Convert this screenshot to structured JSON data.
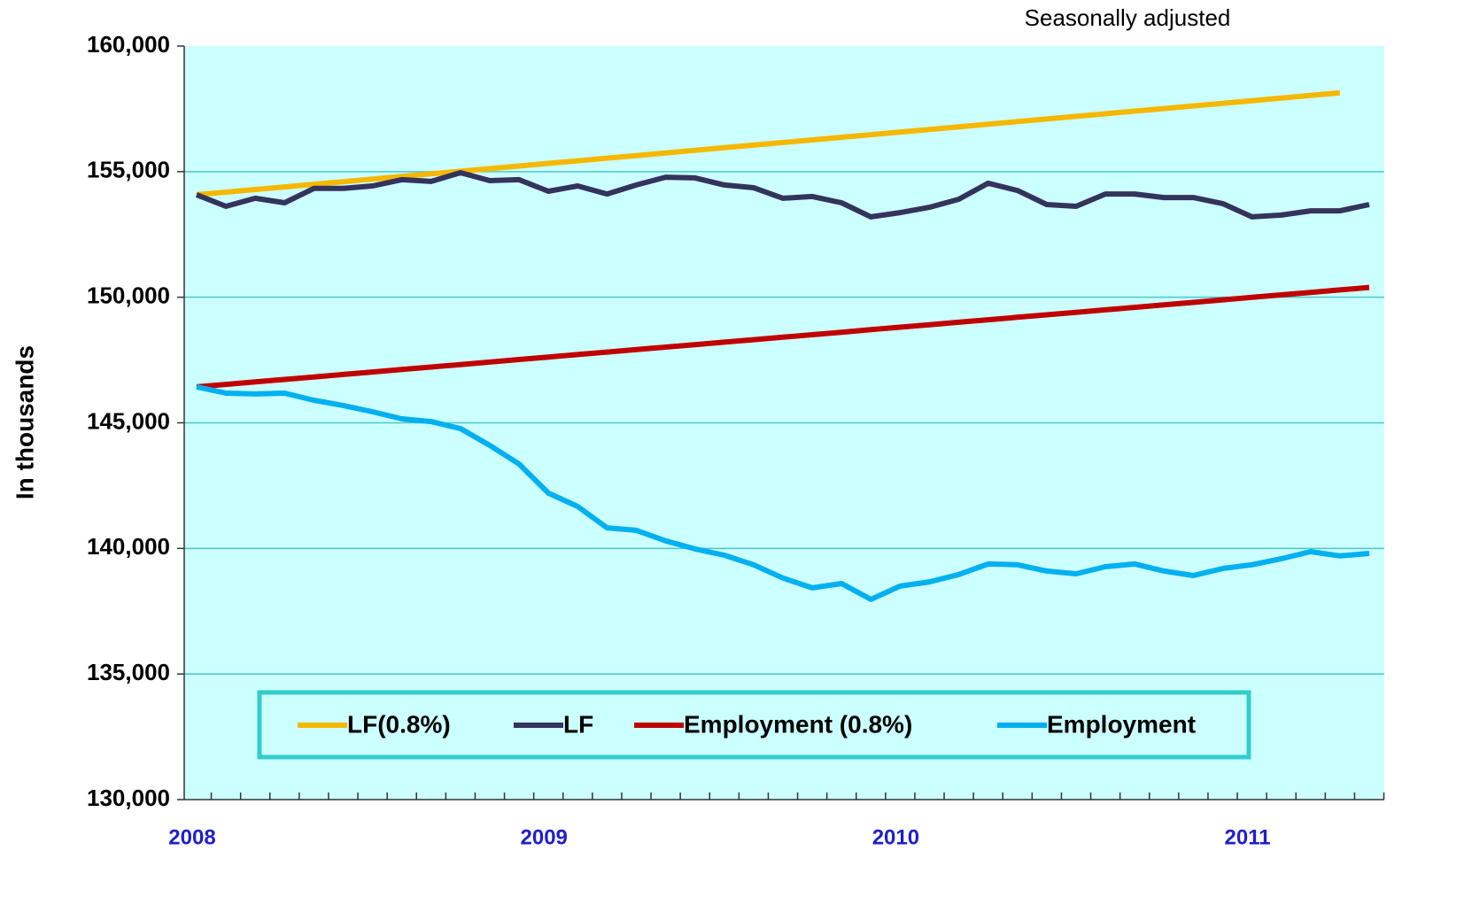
{
  "chart_data": {
    "type": "line",
    "annotation": "Seasonally adjusted",
    "y_label": "In thousands",
    "categories": [
      "2008",
      null,
      null,
      null,
      null,
      null,
      null,
      null,
      null,
      null,
      null,
      null,
      "2009",
      null,
      null,
      null,
      null,
      null,
      null,
      null,
      null,
      null,
      null,
      null,
      "2010",
      null,
      null,
      null,
      null,
      null,
      null,
      null,
      null,
      null,
      null,
      null,
      "2011",
      null,
      null,
      null,
      null
    ],
    "ylim": [
      130000,
      160000
    ],
    "yticks": [
      {
        "value": 130000,
        "label": "130,000"
      },
      {
        "value": 135000,
        "label": "135,000"
      },
      {
        "value": 140000,
        "label": "140,000"
      },
      {
        "value": 145000,
        "label": "145,000"
      },
      {
        "value": 150000,
        "label": "150,000"
      },
      {
        "value": 155000,
        "label": "155,000"
      },
      {
        "value": 160000,
        "label": "160,000"
      }
    ],
    "grid": true,
    "legend": "bottom",
    "series": [
      {
        "name": "LF(0.8%)",
        "color": "#f5b800",
        "values": [
          154080,
          154184,
          154288,
          154392,
          154496,
          154600,
          154704,
          154808,
          154912,
          155016,
          155120,
          155224,
          155328,
          155432,
          155536,
          155640,
          155744,
          155848,
          155952,
          156056,
          156160,
          156264,
          156368,
          156472,
          156576,
          156680,
          156784,
          156888,
          156992,
          157096,
          157200,
          157304,
          157408,
          157512,
          157616,
          157720,
          157824,
          157928,
          158032,
          158136,
          null
        ]
      },
      {
        "name": "LF",
        "color": "#33335c",
        "values": [
          154080,
          153620,
          153940,
          153760,
          154330,
          154330,
          154430,
          154680,
          154610,
          154960,
          154640,
          154680,
          154220,
          154430,
          154110,
          154470,
          154780,
          154750,
          154470,
          154360,
          153940,
          154010,
          153760,
          153200,
          153370,
          153580,
          153900,
          154540,
          154250,
          153690,
          153620,
          154110,
          154110,
          153970,
          153970,
          153730,
          153200,
          153270,
          153440,
          153440,
          153690
        ]
      },
      {
        "name": "Employment (0.8%)",
        "color": "#c00000",
        "values": [
          146430,
          146529,
          146628,
          146727,
          146826,
          146925,
          147024,
          147123,
          147222,
          147321,
          147420,
          147519,
          147618,
          147717,
          147816,
          147915,
          148014,
          148113,
          148212,
          148311,
          148410,
          148509,
          148608,
          148707,
          148806,
          148905,
          149004,
          149103,
          149202,
          149301,
          149400,
          149499,
          149598,
          149697,
          149796,
          149895,
          149994,
          150093,
          150192,
          150291,
          150390
        ]
      },
      {
        "name": "Employment",
        "color": "#00b0f0",
        "values": [
          146430,
          146180,
          146150,
          146180,
          145900,
          145690,
          145440,
          145160,
          145050,
          144770,
          144100,
          143360,
          142200,
          141670,
          140820,
          140720,
          140300,
          139980,
          139730,
          139350,
          138820,
          138430,
          138600,
          137970,
          138500,
          138670,
          138960,
          139380,
          139350,
          139100,
          138990,
          139270,
          139380,
          139100,
          138920,
          139200,
          139350,
          139590,
          139870,
          139700,
          139800
        ]
      }
    ]
  }
}
